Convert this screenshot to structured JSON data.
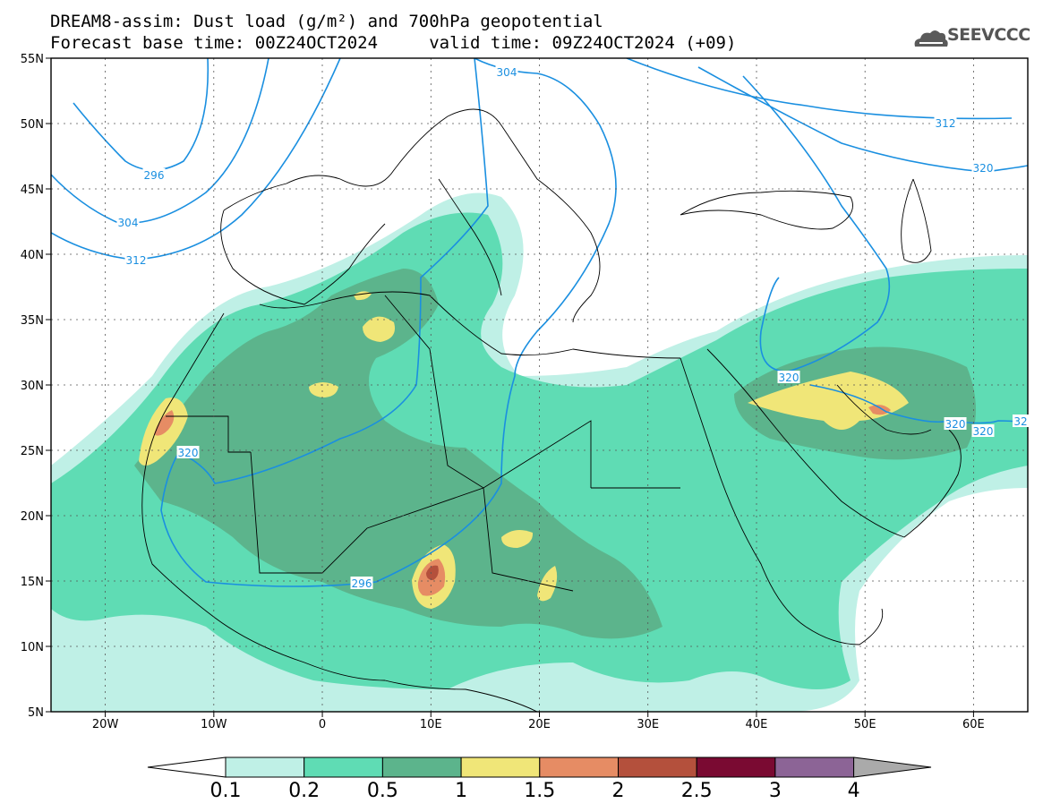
{
  "header": {
    "line1": "DREAM8-assim: Dust load (g/m²) and 700hPa geopotential",
    "line2": "Forecast base time: 00Z24OCT2024     valid time: 09Z24OCT2024 (+09)",
    "logo_text": "SEEVCCC",
    "logo_icon": "cloud-icon"
  },
  "map": {
    "lon_range": [
      -25,
      65
    ],
    "lat_range": [
      5,
      55
    ],
    "lat_labels": [
      "55N",
      "50N",
      "45N",
      "40N",
      "35N",
      "30N",
      "25N",
      "20N",
      "15N",
      "10N",
      "5N"
    ],
    "lon_labels": [
      "20W",
      "10W",
      "0",
      "10E",
      "20E",
      "30E",
      "40E",
      "50E",
      "60E"
    ]
  },
  "contours": {
    "color": "#1a8fe0",
    "labels": [
      "296",
      "304",
      "312",
      "320",
      "296",
      "304",
      "312",
      "320",
      "320",
      "320",
      "320",
      "32"
    ]
  },
  "colorbar": {
    "levels": [
      "0.1",
      "0.2",
      "0.5",
      "1",
      "1.5",
      "2",
      "2.5",
      "3",
      "4"
    ],
    "colors": [
      "#ffffff",
      "#bff0e6",
      "#5fdcb4",
      "#5cb48c",
      "#f0e678",
      "#e68c64",
      "#b4503c",
      "#7a0a32",
      "#8c6496",
      "#aaaaaa"
    ]
  }
}
